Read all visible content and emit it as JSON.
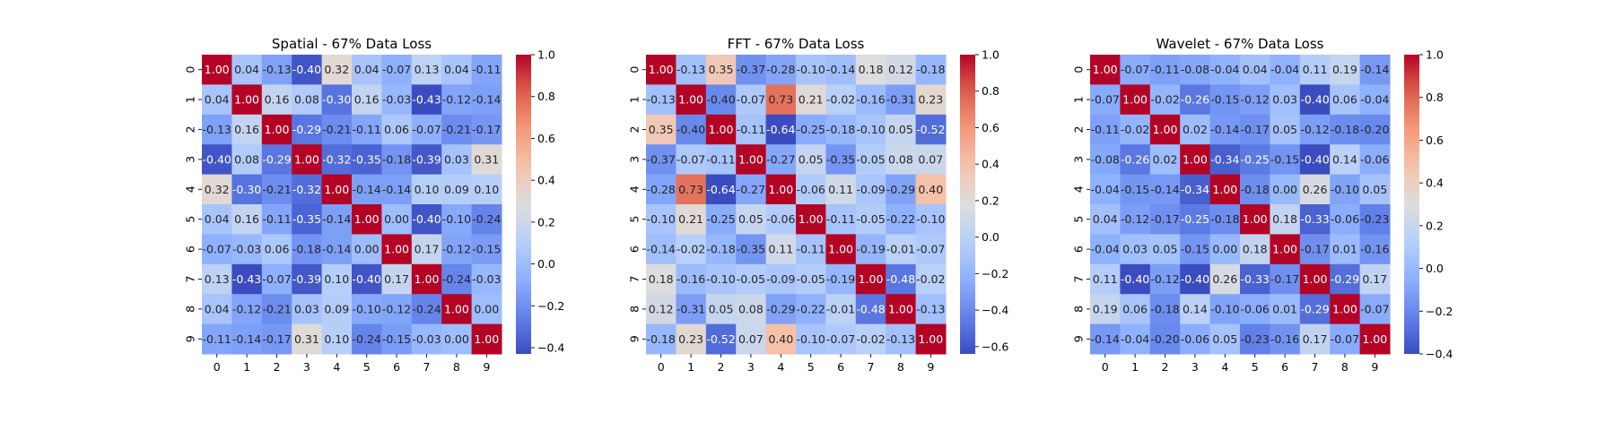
{
  "chart_data": [
    {
      "type": "heatmap",
      "title": "Spatial - 67% Data Loss",
      "x_categories": [
        "0",
        "1",
        "2",
        "3",
        "4",
        "5",
        "6",
        "7",
        "8",
        "9"
      ],
      "y_categories": [
        "0",
        "1",
        "2",
        "3",
        "4",
        "5",
        "6",
        "7",
        "8",
        "9"
      ],
      "values": [
        [
          1.0,
          0.04,
          -0.13,
          -0.4,
          0.32,
          0.04,
          -0.07,
          0.13,
          0.04,
          -0.11
        ],
        [
          0.04,
          1.0,
          0.16,
          0.08,
          -0.3,
          0.16,
          -0.03,
          -0.43,
          -0.12,
          -0.14
        ],
        [
          -0.13,
          0.16,
          1.0,
          -0.29,
          -0.21,
          -0.11,
          0.06,
          -0.07,
          -0.21,
          -0.17
        ],
        [
          -0.4,
          0.08,
          -0.29,
          1.0,
          -0.32,
          -0.35,
          -0.18,
          -0.39,
          0.03,
          0.31
        ],
        [
          0.32,
          -0.3,
          -0.21,
          -0.32,
          1.0,
          -0.14,
          -0.14,
          0.1,
          0.09,
          0.1
        ],
        [
          0.04,
          0.16,
          -0.11,
          -0.35,
          -0.14,
          1.0,
          0.0,
          -0.4,
          -0.1,
          -0.24
        ],
        [
          -0.07,
          -0.03,
          0.06,
          -0.18,
          -0.14,
          0.0,
          1.0,
          0.17,
          -0.12,
          -0.15
        ],
        [
          0.13,
          -0.43,
          -0.07,
          -0.39,
          0.1,
          -0.4,
          0.17,
          1.0,
          -0.24,
          -0.03
        ],
        [
          0.04,
          -0.12,
          -0.21,
          0.03,
          0.09,
          -0.1,
          -0.12,
          -0.24,
          1.0,
          0.0
        ],
        [
          -0.11,
          -0.14,
          -0.17,
          0.31,
          0.1,
          -0.24,
          -0.15,
          -0.03,
          0.0,
          1.0
        ]
      ],
      "vmin": -0.43,
      "vmax": 1.0,
      "colorbar_ticks": [
        1.0,
        0.8,
        0.6,
        0.4,
        0.2,
        0.0,
        -0.2,
        -0.4
      ],
      "colorbar_labels": [
        "1.0",
        "0.8",
        "0.6",
        "0.4",
        "0.2",
        "0.0",
        "−0.2",
        "−0.4"
      ],
      "colormap": "coolwarm",
      "annotated": true
    },
    {
      "type": "heatmap",
      "title": "FFT - 67% Data Loss",
      "x_categories": [
        "0",
        "1",
        "2",
        "3",
        "4",
        "5",
        "6",
        "7",
        "8",
        "9"
      ],
      "y_categories": [
        "0",
        "1",
        "2",
        "3",
        "4",
        "5",
        "6",
        "7",
        "8",
        "9"
      ],
      "values": [
        [
          1.0,
          -0.13,
          0.35,
          -0.37,
          -0.28,
          -0.1,
          -0.14,
          0.18,
          0.12,
          -0.18
        ],
        [
          -0.13,
          1.0,
          -0.4,
          -0.07,
          0.73,
          0.21,
          -0.02,
          -0.16,
          -0.31,
          0.23
        ],
        [
          0.35,
          -0.4,
          1.0,
          -0.11,
          -0.64,
          -0.25,
          -0.18,
          -0.1,
          0.05,
          -0.52
        ],
        [
          -0.37,
          -0.07,
          -0.11,
          1.0,
          -0.27,
          0.05,
          -0.35,
          -0.05,
          0.08,
          0.07
        ],
        [
          -0.28,
          0.73,
          -0.64,
          -0.27,
          1.0,
          -0.06,
          0.11,
          -0.09,
          -0.29,
          0.4
        ],
        [
          -0.1,
          0.21,
          -0.25,
          0.05,
          -0.06,
          1.0,
          -0.11,
          -0.05,
          -0.22,
          -0.1
        ],
        [
          -0.14,
          -0.02,
          -0.18,
          -0.35,
          0.11,
          -0.11,
          1.0,
          -0.19,
          -0.01,
          -0.07
        ],
        [
          0.18,
          -0.16,
          -0.1,
          -0.05,
          -0.09,
          -0.05,
          -0.19,
          1.0,
          -0.48,
          -0.02
        ],
        [
          0.12,
          -0.31,
          0.05,
          0.08,
          -0.29,
          -0.22,
          -0.01,
          -0.48,
          1.0,
          -0.13
        ],
        [
          -0.18,
          0.23,
          -0.52,
          0.07,
          0.4,
          -0.1,
          -0.07,
          -0.02,
          -0.13,
          1.0
        ]
      ],
      "vmin": -0.64,
      "vmax": 1.0,
      "colorbar_ticks": [
        1.0,
        0.8,
        0.6,
        0.4,
        0.2,
        0.0,
        -0.2,
        -0.4,
        -0.6
      ],
      "colorbar_labels": [
        "1.0",
        "0.8",
        "0.6",
        "0.4",
        "0.2",
        "0.0",
        "−0.2",
        "−0.4",
        "−0.6"
      ],
      "colormap": "coolwarm",
      "annotated": true
    },
    {
      "type": "heatmap",
      "title": "Wavelet - 67% Data Loss",
      "x_categories": [
        "0",
        "1",
        "2",
        "3",
        "4",
        "5",
        "6",
        "7",
        "8",
        "9"
      ],
      "y_categories": [
        "0",
        "1",
        "2",
        "3",
        "4",
        "5",
        "6",
        "7",
        "8",
        "9"
      ],
      "values": [
        [
          1.0,
          -0.07,
          -0.11,
          -0.08,
          -0.04,
          0.04,
          -0.04,
          0.11,
          0.19,
          -0.14
        ],
        [
          -0.07,
          1.0,
          -0.02,
          -0.26,
          -0.15,
          -0.12,
          0.03,
          -0.4,
          0.06,
          -0.04
        ],
        [
          -0.11,
          -0.02,
          1.0,
          0.02,
          -0.14,
          -0.17,
          0.05,
          -0.12,
          -0.18,
          -0.2
        ],
        [
          -0.08,
          -0.26,
          0.02,
          1.0,
          -0.34,
          -0.25,
          -0.15,
          -0.4,
          0.14,
          -0.06
        ],
        [
          -0.04,
          -0.15,
          -0.14,
          -0.34,
          1.0,
          -0.18,
          0.0,
          0.26,
          -0.1,
          0.05
        ],
        [
          0.04,
          -0.12,
          -0.17,
          -0.25,
          -0.18,
          1.0,
          0.18,
          -0.33,
          -0.06,
          -0.23
        ],
        [
          -0.04,
          0.03,
          0.05,
          -0.15,
          0.0,
          0.18,
          1.0,
          -0.17,
          0.01,
          -0.16
        ],
        [
          0.11,
          -0.4,
          -0.12,
          -0.4,
          0.26,
          -0.33,
          -0.17,
          1.0,
          -0.29,
          0.17
        ],
        [
          0.19,
          0.06,
          -0.18,
          0.14,
          -0.1,
          -0.06,
          0.01,
          -0.29,
          1.0,
          -0.07
        ],
        [
          -0.14,
          -0.04,
          -0.2,
          -0.06,
          0.05,
          -0.23,
          -0.16,
          0.17,
          -0.07,
          1.0
        ]
      ],
      "vmin": -0.4,
      "vmax": 1.0,
      "colorbar_ticks": [
        1.0,
        0.8,
        0.6,
        0.4,
        0.2,
        0.0,
        -0.2,
        -0.4
      ],
      "colorbar_labels": [
        "1.0",
        "0.8",
        "0.6",
        "0.4",
        "0.2",
        "0.0",
        "−0.2",
        "−0.4"
      ],
      "colormap": "coolwarm",
      "annotated": true
    }
  ]
}
